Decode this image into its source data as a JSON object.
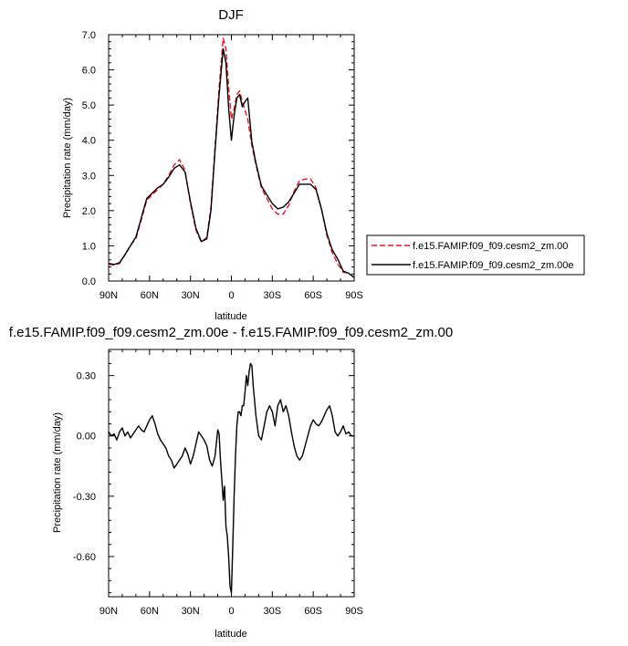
{
  "chart_data": [
    {
      "type": "line",
      "title": "DJF",
      "xlabel": "latitude",
      "ylabel": "Precipitation rate (mm/day)",
      "x_reversed": true,
      "xlim": [
        90,
        -90
      ],
      "ylim": [
        0,
        7
      ],
      "xticks": [
        90,
        60,
        30,
        0,
        -30,
        -60,
        -90
      ],
      "xtick_labels": [
        "90N",
        "60N",
        "30N",
        "0",
        "30S",
        "60S",
        "90S"
      ],
      "yticks": [
        0,
        1,
        2,
        3,
        4,
        5,
        6,
        7
      ],
      "ytick_labels": [
        "0.0",
        "1.0",
        "2.0",
        "3.0",
        "4.0",
        "5.0",
        "6.0",
        "7.0"
      ],
      "grid": false,
      "legend_position": "right",
      "series": [
        {
          "name": "f.e15.FAMIP.f09_f09.cesm2_zm.00",
          "color": "#e8121e",
          "dash": "dashed",
          "x": [
            90,
            86,
            82,
            78,
            74,
            70,
            66,
            62,
            58,
            54,
            50,
            46,
            42,
            38,
            34,
            30,
            26,
            22,
            18,
            15,
            12,
            9,
            6,
            4,
            2,
            0,
            -2,
            -4,
            -6,
            -8,
            -10,
            -12,
            -15,
            -18,
            -22,
            -26,
            -30,
            -34,
            -38,
            -42,
            -46,
            -50,
            -54,
            -58,
            -62,
            -66,
            -70,
            -74,
            -78,
            -82,
            -86,
            -90
          ],
          "y": [
            0.48,
            0.45,
            0.5,
            0.75,
            1.02,
            1.2,
            1.75,
            2.3,
            2.45,
            2.6,
            2.75,
            3.0,
            3.3,
            3.45,
            3.15,
            2.2,
            1.45,
            1.1,
            1.25,
            2.1,
            3.8,
            5.5,
            6.9,
            6.6,
            5.5,
            4.6,
            4.9,
            5.3,
            5.4,
            5.1,
            4.85,
            4.6,
            3.85,
            3.3,
            2.65,
            2.35,
            2.05,
            1.9,
            1.9,
            2.15,
            2.55,
            2.85,
            2.9,
            2.9,
            2.65,
            2.05,
            1.3,
            0.8,
            0.48,
            0.25,
            0.22,
            0.1
          ]
        },
        {
          "name": "f.e15.FAMIP.f09_f09.cesm2_zm.00e",
          "color": "#000000",
          "dash": "solid",
          "x": [
            90,
            86,
            82,
            78,
            74,
            70,
            66,
            62,
            58,
            54,
            50,
            46,
            42,
            38,
            34,
            30,
            26,
            22,
            18,
            15,
            12,
            9,
            6,
            4,
            2,
            0,
            -2,
            -4,
            -6,
            -8,
            -10,
            -12,
            -15,
            -18,
            -22,
            -26,
            -30,
            -34,
            -38,
            -42,
            -46,
            -50,
            -54,
            -58,
            -62,
            -66,
            -70,
            -74,
            -78,
            -82,
            -86,
            -90
          ],
          "y": [
            0.5,
            0.47,
            0.52,
            0.75,
            1.0,
            1.25,
            1.8,
            2.35,
            2.5,
            2.65,
            2.75,
            2.95,
            3.2,
            3.3,
            3.1,
            2.25,
            1.5,
            1.12,
            1.2,
            2.0,
            3.7,
            5.3,
            6.6,
            6.2,
            4.9,
            4.0,
            4.7,
            5.2,
            5.3,
            4.95,
            5.1,
            5.2,
            3.95,
            3.35,
            2.7,
            2.45,
            2.2,
            2.05,
            2.1,
            2.25,
            2.5,
            2.75,
            2.75,
            2.75,
            2.6,
            2.05,
            1.35,
            0.88,
            0.62,
            0.28,
            0.22,
            0.1
          ]
        }
      ]
    },
    {
      "type": "line",
      "title": "f.e15.FAMIP.f09_f09.cesm2_zm.00e - f.e15.FAMIP.f09_f09.cesm2_zm.00",
      "xlabel": "latitude",
      "ylabel": "Precipitation rate (mm/day)",
      "x_reversed": true,
      "xlim": [
        90,
        -90
      ],
      "ylim": [
        -0.8,
        0.43
      ],
      "xticks": [
        90,
        60,
        30,
        0,
        -30,
        -60,
        -90
      ],
      "xtick_labels": [
        "90N",
        "60N",
        "30N",
        "0",
        "30S",
        "60S",
        "90S"
      ],
      "yticks": [
        0.3,
        0,
        -0.3,
        -0.6
      ],
      "ytick_labels": [
        "0.30",
        "0.00",
        "-0.30",
        "-0.60"
      ],
      "grid": false,
      "series": [
        {
          "color": "#000000",
          "dash": "solid",
          "x": [
            90,
            88,
            86,
            84,
            82,
            80,
            78,
            76,
            74,
            72,
            70,
            68,
            66,
            64,
            62,
            60,
            58,
            56,
            54,
            52,
            50,
            48,
            46,
            44,
            42,
            40,
            38,
            36,
            34,
            32,
            30,
            28,
            26,
            24,
            22,
            20,
            18,
            16,
            14,
            12,
            10,
            9,
            8,
            7,
            6,
            5,
            4,
            3,
            2,
            1,
            0,
            -1,
            -2,
            -3,
            -4,
            -5,
            -6,
            -7,
            -8,
            -9,
            -10,
            -11,
            -12,
            -13,
            -14,
            -15,
            -16,
            -18,
            -20,
            -22,
            -24,
            -26,
            -28,
            -30,
            -32,
            -34,
            -36,
            -38,
            -40,
            -42,
            -44,
            -46,
            -48,
            -50,
            -52,
            -54,
            -56,
            -58,
            -60,
            -62,
            -64,
            -66,
            -68,
            -70,
            -72,
            -74,
            -76,
            -78,
            -80,
            -82,
            -84,
            -86,
            -88,
            -90
          ],
          "y": [
            0.02,
            0.0,
            0.01,
            -0.02,
            0.02,
            0.04,
            0.0,
            0.02,
            -0.01,
            0.01,
            0.03,
            0.05,
            0.03,
            0.02,
            0.05,
            0.08,
            0.1,
            0.06,
            0.01,
            -0.02,
            -0.04,
            -0.06,
            -0.1,
            -0.12,
            -0.16,
            -0.14,
            -0.12,
            -0.1,
            -0.06,
            -0.09,
            -0.14,
            -0.1,
            -0.04,
            0.02,
            0.0,
            -0.02,
            -0.05,
            -0.12,
            -0.15,
            -0.1,
            0.03,
            0.01,
            -0.12,
            -0.22,
            -0.32,
            -0.25,
            -0.45,
            -0.5,
            -0.6,
            -0.75,
            -0.78,
            -0.55,
            -0.3,
            -0.1,
            0.05,
            0.12,
            0.12,
            0.1,
            0.15,
            0.15,
            0.22,
            0.3,
            0.25,
            0.32,
            0.36,
            0.35,
            0.25,
            0.1,
            0.0,
            -0.02,
            0.05,
            0.12,
            0.15,
            0.12,
            0.05,
            0.15,
            0.18,
            0.12,
            0.15,
            0.1,
            0.02,
            -0.05,
            -0.1,
            -0.12,
            -0.1,
            -0.05,
            0.0,
            0.05,
            0.08,
            0.06,
            0.05,
            0.07,
            0.1,
            0.13,
            0.15,
            0.1,
            0.02,
            0.0,
            0.02,
            0.05,
            0.01,
            0.02,
            0.0,
            0.0
          ]
        }
      ]
    }
  ]
}
